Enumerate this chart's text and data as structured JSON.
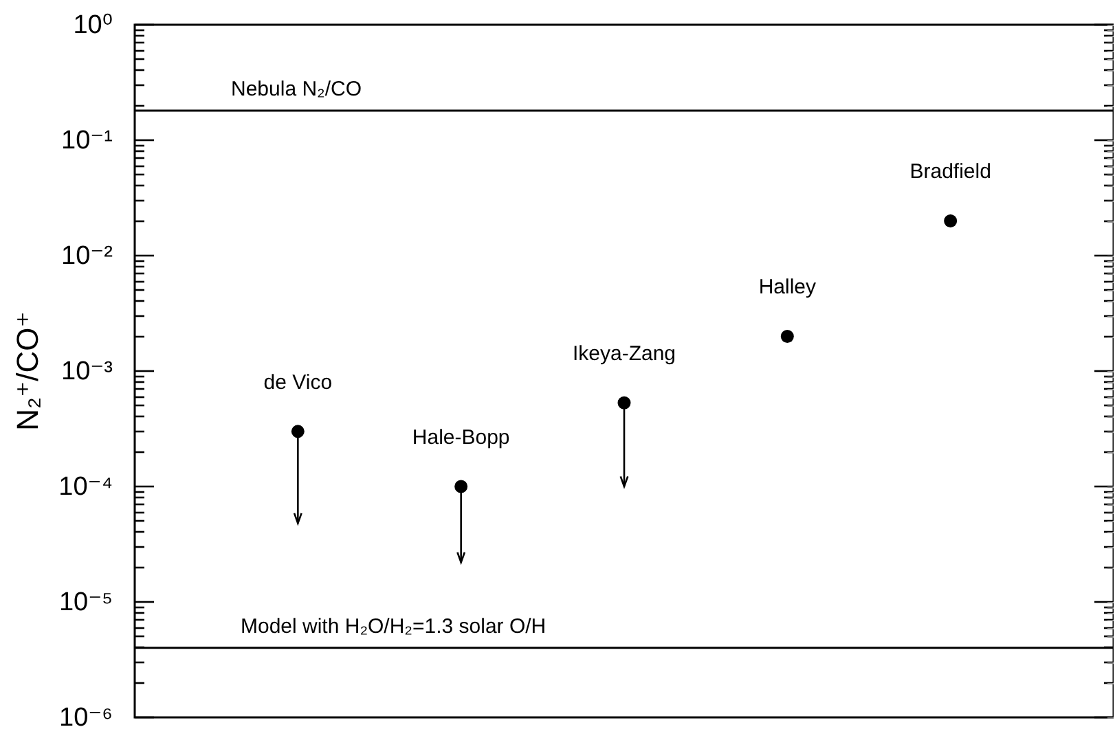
{
  "chart_data": {
    "type": "scatter",
    "ylabel": "N₂⁺/CO⁺",
    "categories": [
      null,
      null,
      null,
      null,
      null
    ],
    "values": [
      0.0003,
      0.0001,
      0.00053,
      0.002,
      0.02
    ],
    "value_labels": [
      "de Vico",
      "Hale-Bopp",
      "Ikeya-Zang",
      "Halley",
      "Bradfield"
    ],
    "errors": [
      [
        4.8e-05,
        0.0003
      ],
      [
        2.2e-05,
        0.0001
      ],
      [
        0.0001,
        0.00053
      ],
      null,
      null
    ],
    "color": "#000000",
    "marker": "circle",
    "log": "y",
    "ylim": [
      1e-06,
      1
    ],
    "yticks": [
      {
        "value": 1e-06,
        "label": "10⁻⁶"
      },
      {
        "value": 1e-05,
        "label": "10⁻⁵"
      },
      {
        "value": 0.0001,
        "label": "10⁻⁴"
      },
      {
        "value": 0.001,
        "label": "10⁻³"
      },
      {
        "value": 0.01,
        "label": "10⁻²"
      },
      {
        "value": 0.1,
        "label": "10⁻¹"
      },
      {
        "value": 1,
        "label": "10⁰"
      },
      {
        "value": 2e-06,
        "label": null
      },
      {
        "value": 3e-06,
        "label": null
      },
      {
        "value": 4e-06,
        "label": null
      },
      {
        "value": 5e-06,
        "label": null
      },
      {
        "value": 6e-06,
        "label": null
      },
      {
        "value": 7e-06,
        "label": null
      },
      {
        "value": 8e-06,
        "label": null
      },
      {
        "value": 9e-06,
        "label": null
      },
      {
        "value": 2e-05,
        "label": null
      },
      {
        "value": 3e-05,
        "label": null
      },
      {
        "value": 4e-05,
        "label": null
      },
      {
        "value": 5e-05,
        "label": null
      },
      {
        "value": 6e-05,
        "label": null
      },
      {
        "value": 7e-05,
        "label": null
      },
      {
        "value": 8e-05,
        "label": null
      },
      {
        "value": 9e-05,
        "label": null
      },
      {
        "value": 0.0002,
        "label": null
      },
      {
        "value": 0.0003,
        "label": null
      },
      {
        "value": 0.0004,
        "label": null
      },
      {
        "value": 0.0005,
        "label": null
      },
      {
        "value": 0.0006,
        "label": null
      },
      {
        "value": 0.0007,
        "label": null
      },
      {
        "value": 0.0008,
        "label": null
      },
      {
        "value": 0.0009,
        "label": null
      },
      {
        "value": 0.002,
        "label": null
      },
      {
        "value": 0.003,
        "label": null
      },
      {
        "value": 0.004,
        "label": null
      },
      {
        "value": 0.005,
        "label": null
      },
      {
        "value": 0.006,
        "label": null
      },
      {
        "value": 0.007,
        "label": null
      },
      {
        "value": 0.008,
        "label": null
      },
      {
        "value": 0.009,
        "label": null
      },
      {
        "value": 0.02,
        "label": null
      },
      {
        "value": 0.03,
        "label": null
      },
      {
        "value": 0.04,
        "label": null
      },
      {
        "value": 0.05,
        "label": null
      },
      {
        "value": 0.06,
        "label": null
      },
      {
        "value": 0.07,
        "label": null
      },
      {
        "value": 0.08,
        "label": null
      },
      {
        "value": 0.09,
        "label": null
      },
      {
        "value": 0.2,
        "label": null
      },
      {
        "value": 0.3,
        "label": null
      },
      {
        "value": 0.4,
        "label": null
      },
      {
        "value": 0.5,
        "label": null
      },
      {
        "value": 0.6,
        "label": null
      },
      {
        "value": 0.7,
        "label": null
      },
      {
        "value": 0.8,
        "label": null
      },
      {
        "value": 0.9,
        "label": null
      }
    ],
    "ref_lines": [
      {
        "axis": "y",
        "value": 0.18,
        "label": "Nebula N₂/CO"
      },
      {
        "axis": "y",
        "value": 4e-06
      }
    ],
    "annotations": [
      {
        "text": "Model with H₂O/H₂=1.3 solar O/H",
        "y": 4e-06
      }
    ],
    "tick_labels": "y",
    "grid": false
  }
}
